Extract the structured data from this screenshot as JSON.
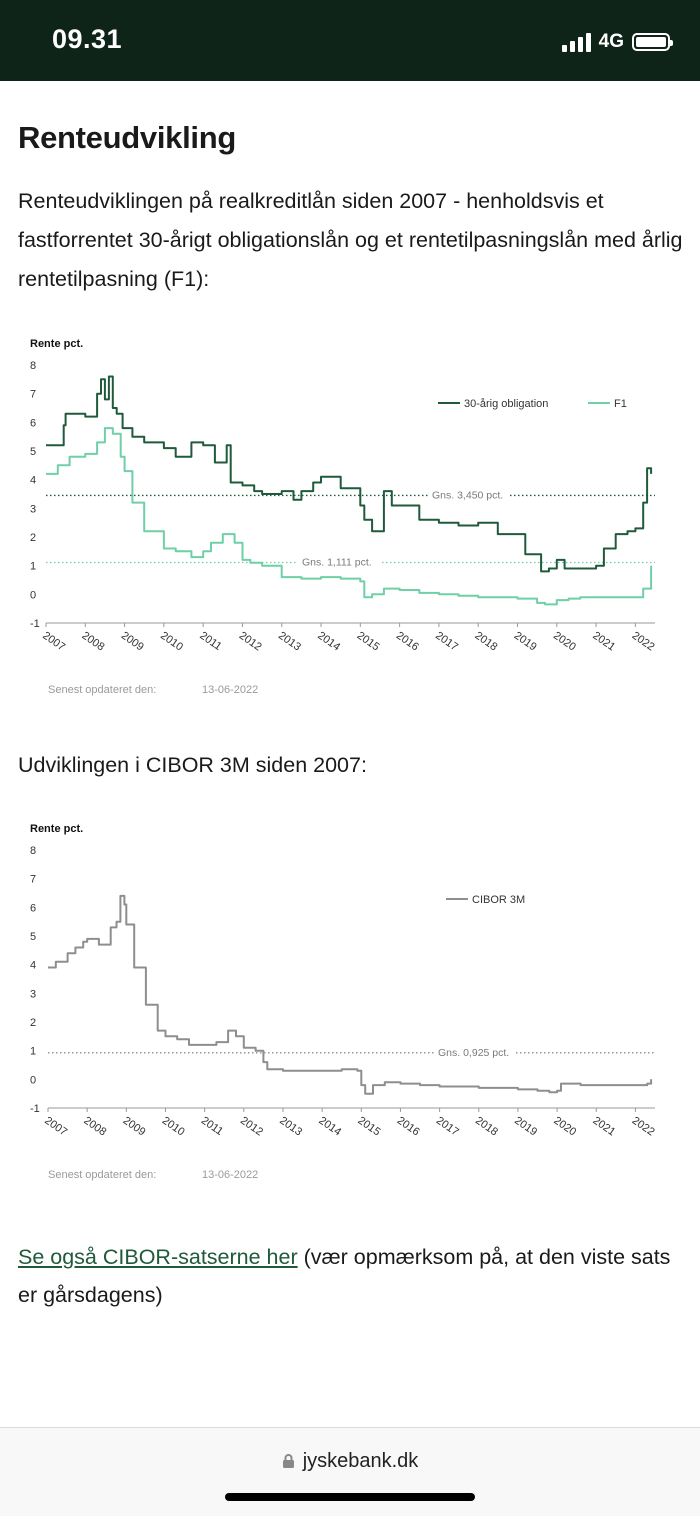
{
  "status_bar": {
    "time": "09.31",
    "network": "4G"
  },
  "page": {
    "title": "Renteudvikling",
    "intro": "Renteudviklingen på realkreditlån siden 2007 - henholdsvis et fastforrentet 30-årigt obligationslån og et rentetilpasningslån med årlig rentetilpasning (F1):",
    "cibor_heading": "Udviklingen i CIBOR 3M siden 2007:",
    "cibor_link": "Se også CIBOR-satserne her",
    "cibor_note": " (vær opmærksom på, at den viste sats er gårsdagens)"
  },
  "browser": {
    "url": "jyskebank.dk"
  },
  "colors": {
    "dark_green": "#1f5a3a",
    "light_green": "#6fcfa6",
    "gray": "#8e8e8e",
    "status_bg": "#0f2418"
  },
  "chart_data": [
    {
      "type": "line",
      "ylabel": "Rente pct.",
      "ylim": [
        -1,
        8
      ],
      "yticks": [
        "-1",
        "0",
        "1",
        "2",
        "3",
        "4",
        "5",
        "6",
        "7",
        "8"
      ],
      "xlim": [
        2007,
        2022.5
      ],
      "xticks": [
        "2007",
        "2008",
        "2009",
        "2010",
        "2011",
        "2012",
        "2013",
        "2014",
        "2015",
        "2016",
        "2017",
        "2018",
        "2019",
        "2020",
        "2021",
        "2022"
      ],
      "updated_label": "Senest opdateret den:",
      "updated_date": "13-06-2022",
      "references": [
        {
          "label": "Gns. 3,450 pct.",
          "value": 3.45,
          "series": "30-årig obligation"
        },
        {
          "label": "Gns. 1,111 pct.",
          "value": 1.111,
          "series": "F1"
        }
      ],
      "series": [
        {
          "name": "30-årig obligation",
          "color": "#1f5a3a",
          "x": [
            2007.0,
            2007.3,
            2007.45,
            2007.5,
            2008.0,
            2008.3,
            2008.4,
            2008.5,
            2008.6,
            2008.7,
            2008.8,
            2008.95,
            2009.2,
            2009.5,
            2010.0,
            2010.3,
            2010.7,
            2011.0,
            2011.3,
            2011.6,
            2011.7,
            2012.0,
            2012.3,
            2012.5,
            2013.0,
            2013.3,
            2013.5,
            2013.8,
            2014.0,
            2014.5,
            2015.0,
            2015.1,
            2015.3,
            2015.6,
            2015.8,
            2016.0,
            2016.5,
            2017.0,
            2017.5,
            2018.0,
            2018.5,
            2019.0,
            2019.2,
            2019.5,
            2019.6,
            2019.8,
            2020.0,
            2020.2,
            2020.5,
            2020.8,
            2021.0,
            2021.2,
            2021.5,
            2021.8,
            2022.0,
            2022.2,
            2022.3,
            2022.4
          ],
          "y": [
            5.2,
            5.2,
            5.9,
            6.3,
            6.2,
            7.0,
            7.5,
            6.8,
            7.6,
            6.5,
            6.3,
            5.8,
            5.5,
            5.3,
            5.1,
            4.8,
            5.3,
            5.2,
            4.6,
            5.2,
            3.9,
            3.8,
            3.6,
            3.5,
            3.6,
            3.3,
            3.6,
            3.9,
            4.1,
            3.7,
            3.1,
            2.6,
            2.2,
            3.6,
            3.1,
            3.1,
            2.6,
            2.5,
            2.4,
            2.5,
            2.1,
            2.1,
            1.4,
            1.4,
            0.8,
            0.9,
            1.2,
            0.9,
            0.9,
            0.9,
            1.0,
            1.6,
            2.1,
            2.2,
            2.3,
            3.2,
            4.4,
            4.2
          ]
        },
        {
          "name": "F1",
          "color": "#6fcfa6",
          "x": [
            2007.0,
            2007.3,
            2007.6,
            2008.0,
            2008.3,
            2008.5,
            2008.7,
            2008.9,
            2009.0,
            2009.2,
            2009.5,
            2010.0,
            2010.3,
            2010.7,
            2011.0,
            2011.2,
            2011.5,
            2011.8,
            2012.0,
            2012.2,
            2012.5,
            2013.0,
            2013.5,
            2014.0,
            2014.5,
            2015.0,
            2015.1,
            2015.3,
            2015.6,
            2016.0,
            2016.5,
            2017.0,
            2017.5,
            2018.0,
            2018.5,
            2019.0,
            2019.5,
            2019.7,
            2020.0,
            2020.3,
            2020.6,
            2021.0,
            2021.5,
            2022.0,
            2022.2,
            2022.4
          ],
          "y": [
            4.2,
            4.5,
            4.8,
            4.9,
            5.3,
            5.8,
            5.6,
            4.8,
            4.3,
            3.2,
            2.2,
            1.6,
            1.5,
            1.3,
            1.5,
            1.8,
            2.1,
            1.8,
            1.2,
            1.1,
            1.0,
            0.6,
            0.55,
            0.6,
            0.55,
            0.45,
            -0.1,
            0.0,
            0.2,
            0.15,
            0.05,
            0.0,
            -0.05,
            -0.1,
            -0.1,
            -0.15,
            -0.3,
            -0.35,
            -0.2,
            -0.15,
            -0.1,
            -0.1,
            -0.1,
            -0.1,
            0.2,
            1.0
          ]
        }
      ]
    },
    {
      "type": "line",
      "ylabel": "Rente pct.",
      "ylim": [
        -1,
        8
      ],
      "yticks": [
        "-1",
        "0",
        "1",
        "2",
        "3",
        "4",
        "5",
        "6",
        "7",
        "8"
      ],
      "xlim": [
        2007,
        2022.5
      ],
      "xticks": [
        "2007",
        "2008",
        "2009",
        "2010",
        "2011",
        "2012",
        "2013",
        "2014",
        "2015",
        "2016",
        "2017",
        "2018",
        "2019",
        "2020",
        "2021",
        "2022"
      ],
      "updated_label": "Senest opdateret den:",
      "updated_date": "13-06-2022",
      "references": [
        {
          "label": "Gns. 0,925 pct.",
          "value": 0.925,
          "series": "CIBOR 3M"
        }
      ],
      "series": [
        {
          "name": "CIBOR 3M",
          "color": "#8e8e8e",
          "x": [
            2007.0,
            2007.2,
            2007.5,
            2007.7,
            2007.9,
            2008.0,
            2008.3,
            2008.6,
            2008.75,
            2008.85,
            2008.95,
            2009.0,
            2009.2,
            2009.5,
            2009.8,
            2010.0,
            2010.3,
            2010.6,
            2011.0,
            2011.3,
            2011.6,
            2011.8,
            2012.0,
            2012.3,
            2012.5,
            2012.6,
            2013.0,
            2013.5,
            2014.0,
            2014.5,
            2014.9,
            2015.0,
            2015.1,
            2015.3,
            2015.6,
            2016.0,
            2016.5,
            2017.0,
            2017.5,
            2018.0,
            2018.5,
            2019.0,
            2019.5,
            2019.8,
            2020.0,
            2020.1,
            2020.3,
            2020.6,
            2021.0,
            2021.5,
            2022.0,
            2022.3,
            2022.4
          ],
          "y": [
            3.9,
            4.1,
            4.4,
            4.6,
            4.8,
            4.9,
            4.7,
            5.3,
            5.5,
            6.4,
            6.1,
            5.4,
            3.9,
            2.6,
            1.7,
            1.5,
            1.4,
            1.2,
            1.2,
            1.3,
            1.7,
            1.5,
            1.1,
            1.0,
            0.6,
            0.35,
            0.3,
            0.3,
            0.3,
            0.35,
            0.3,
            -0.2,
            -0.5,
            -0.2,
            -0.1,
            -0.15,
            -0.2,
            -0.25,
            -0.25,
            -0.3,
            -0.3,
            -0.35,
            -0.4,
            -0.45,
            -0.4,
            -0.15,
            -0.15,
            -0.2,
            -0.2,
            -0.2,
            -0.2,
            -0.15,
            0.0
          ]
        }
      ]
    }
  ]
}
